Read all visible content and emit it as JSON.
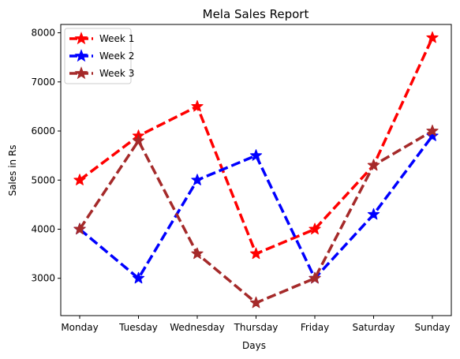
{
  "chart_data": {
    "type": "line",
    "title": "Mela Sales Report",
    "xlabel": "Days",
    "ylabel": "Sales in Rs",
    "categories": [
      "Monday",
      "Tuesday",
      "Wednesday",
      "Thursday",
      "Friday",
      "Saturday",
      "Sunday"
    ],
    "ylim": [
      2240,
      8170
    ],
    "yticks": [
      3000,
      4000,
      5000,
      6000,
      7000,
      8000
    ],
    "grid": false,
    "legend_position": "upper left",
    "series": [
      {
        "name": "Week 1",
        "color": "#ff0000",
        "marker": "star",
        "linestyle": "dashed",
        "values": [
          5000,
          5900,
          6500,
          3500,
          4000,
          5300,
          7900
        ]
      },
      {
        "name": "Week 2",
        "color": "#0000ff",
        "marker": "star",
        "linestyle": "dashed",
        "values": [
          4000,
          3000,
          5000,
          5500,
          3000,
          4300,
          5900
        ]
      },
      {
        "name": "Week 3",
        "color": "#a52a2a",
        "marker": "star",
        "linestyle": "dashed",
        "values": [
          4000,
          5800,
          3500,
          2500,
          3000,
          5300,
          6000
        ]
      }
    ]
  }
}
